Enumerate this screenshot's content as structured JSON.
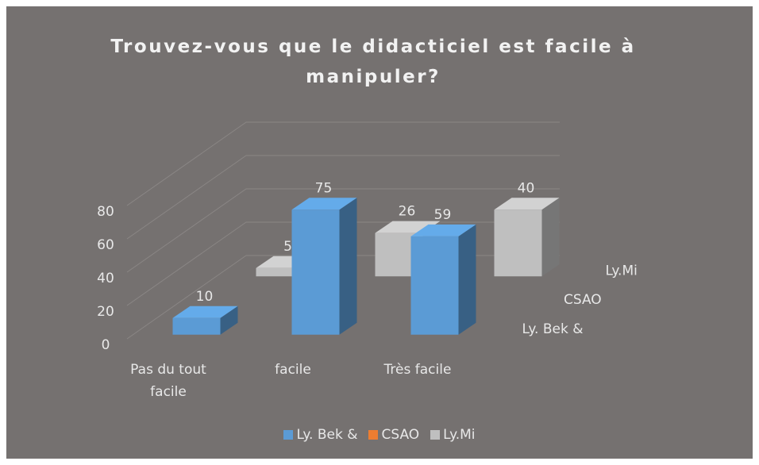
{
  "chart_data": {
    "type": "bar3d",
    "title": "Trouvez-vous que le didacticiel est facile à manipuler?",
    "categories": [
      "Pas du tout facile",
      "facile",
      "Très facile"
    ],
    "series": [
      {
        "name": "Ly. Bek &",
        "color": "#5b9bd5",
        "values": [
          10,
          75,
          59
        ]
      },
      {
        "name": "CSAO",
        "color": "#ed7d31",
        "values": [
          null,
          null,
          null
        ]
      },
      {
        "name": "Ly.Mi",
        "color": "#bfbfbf",
        "values": [
          5,
          26,
          40
        ]
      }
    ],
    "ylim": [
      0,
      80
    ],
    "yticks": [
      0,
      20,
      40,
      60,
      80
    ],
    "grid": true,
    "legend": "bottom"
  }
}
